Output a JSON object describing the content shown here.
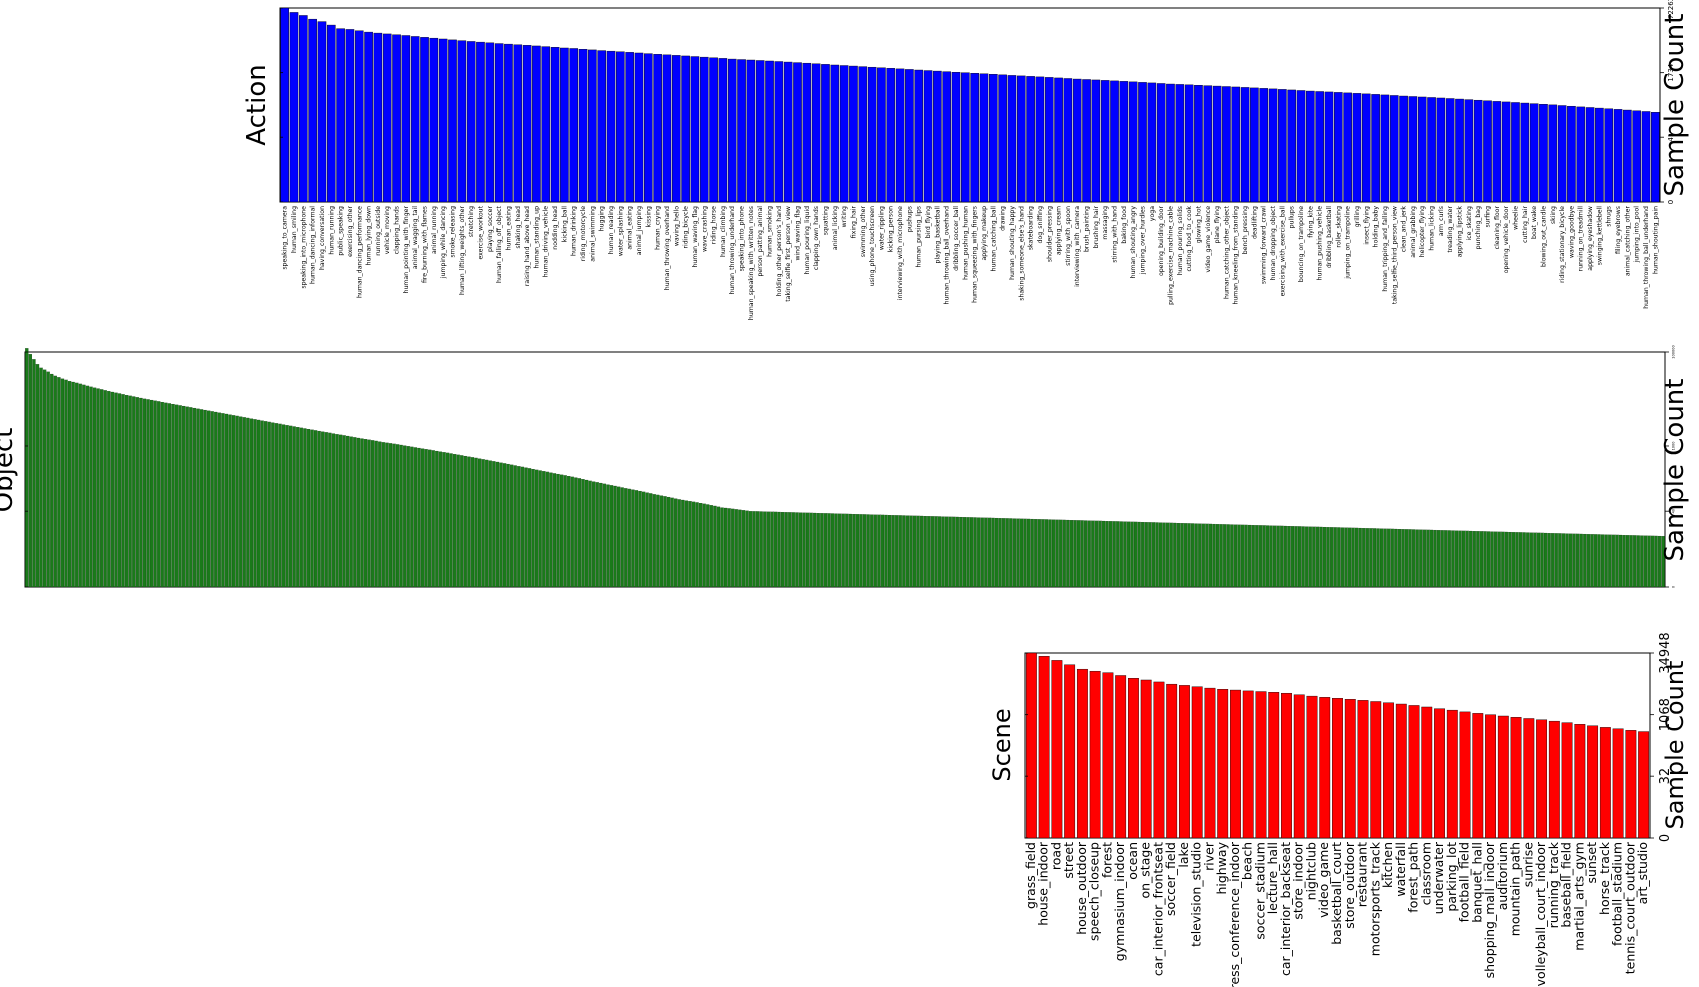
{
  "chart_data": [
    {
      "type": "bar",
      "category_title": "Action",
      "right_axis_label": "Sample Count",
      "yscale": "log",
      "yticks": [
        "0",
        "41",
        "1734",
        "72263"
      ],
      "color": "#0000ff",
      "categories": [
        "speaking_to_camera",
        "human_smiling",
        "speaking_into_microphone",
        "human_dancing_informal",
        "having_conversation",
        "human_running",
        "public_speaking",
        "exercising_other",
        "human_dancing_performance",
        "human_lying_down",
        "running_outside",
        "vehicle_moving",
        "clapping_hands",
        "human_pointing_with_finger",
        "animal_wagging_tail",
        "fire_burning_with_flames",
        "animal_running",
        "jumping_while_dancing",
        "smoke_releasing",
        "human_lifting_weights_other",
        "stretching",
        "exercise_workout",
        "playing_soccer",
        "human_falling_off_object",
        "human_eating",
        "shaking_head",
        "raising_hand_above_head",
        "human_standing_up",
        "human_driving_vehicle",
        "nodding_head",
        "kicking_ball",
        "human_drinking",
        "riding_motorcycle",
        "animal_swimming",
        "hugging",
        "human_reading",
        "water_splashing",
        "animal_eating",
        "animal_jumping",
        "kissing",
        "human_crying",
        "human_throwing_overhand",
        "waving_hello",
        "riding_bicycle",
        "human_waving_flag",
        "wave_crashing",
        "riding_horse",
        "human_climbing",
        "human_throwing_underhand",
        "speaking_into_phone",
        "human_speaking_with_written_notes",
        "person_patting_animal",
        "human_smoking",
        "holding_other_person's_hand",
        "taking_selfie_first_person_view",
        "wind_waving_flag",
        "human_pouring_liquid",
        "clapping_own_hands",
        "squatting",
        "animal_licking",
        "writing",
        "fixing_hair",
        "swimming_other",
        "using_phone_touchscreen",
        "water_rippling",
        "kicking_person",
        "interviewing_with_microphone",
        "pushups",
        "human_pursing_lips",
        "bird_flying",
        "playing_basketball",
        "human_throwing_ball_overhand",
        "dribbling_soccer_ball",
        "human_pushing_human",
        "human_squeezing_with_fingers",
        "applying_makeup",
        "human_catching_ball",
        "drawing",
        "human_shouting_happy",
        "shaking_someone_else's_hand",
        "skateboarding",
        "dog_sniffing",
        "shoulder_pressing",
        "applying_cream",
        "stirring_with_spoon",
        "interviewing_with_camera",
        "brush_painting",
        "brushing_hair",
        "massaging",
        "stirring_with_hand",
        "baking_food",
        "human_shouting_angry",
        "jumping_over_hurdles",
        "yoga",
        "opening_building_door",
        "pulling_exercise_machine_cable",
        "human_pouring_solids",
        "cutting_food_to_cook",
        "glowing_hot",
        "video_game_violence",
        "plane_flying",
        "human_catching_other_object",
        "human_kneeling_from_standing",
        "bench_pressing",
        "deadlifting",
        "swimming_forward_crawl",
        "human_dropping_object",
        "exercising_with_exercise_ball",
        "pullups",
        "bouncing_on_trampoline",
        "flying_kite",
        "human_pushing_vehicle",
        "dribbling_basketball",
        "roller_skating",
        "jumping_on_trampoline",
        "grilling",
        "insect_flying",
        "holding_baby",
        "human_tripping_and_falling",
        "taking_selfie_third_person_view",
        "clean_and_jerk",
        "animal_grabbing",
        "helicopter_flying",
        "human_licking",
        "arm_curls",
        "treading_water",
        "applying_lipstick",
        "ice_skating",
        "punching_bag",
        "surfing",
        "cleaning_floor",
        "opening_vehicle_door",
        "wheelie",
        "cutting_hair",
        "boat_wake",
        "blowing_out_candle",
        "skiing",
        "riding_stationary_bicycle",
        "waving_goodbye",
        "running_on_treadmill",
        "applying_eyeshadow",
        "swinging_kettlebell",
        "shrugs",
        "filing_eyebrows",
        "animal_catching_other",
        "jumping_into_pool",
        "human_throwing_ball_underhand",
        "human_shouting_pain"
      ],
      "values": [
        72263,
        56000,
        47000,
        38000,
        33000,
        27000,
        22000,
        21000,
        19500,
        18000,
        17000,
        16200,
        15500,
        14800,
        14000,
        13300,
        12700,
        12100,
        11500,
        11000,
        10500,
        10100,
        9700,
        9300,
        9000,
        8700,
        8400,
        8100,
        7800,
        7500,
        7200,
        7000,
        6700,
        6450,
        6200,
        6000,
        5800,
        5600,
        5400,
        5200,
        5000,
        4850,
        4700,
        4550,
        4400,
        4250,
        4100,
        3950,
        3800,
        3700,
        3600,
        3500,
        3400,
        3300,
        3200,
        3100,
        3000,
        2900,
        2800,
        2700,
        2620,
        2540,
        2460,
        2380,
        2300,
        2230,
        2160,
        2090,
        2020,
        1960,
        1900,
        1840,
        1780,
        1734,
        1680,
        1630,
        1580,
        1530,
        1480,
        1440,
        1400,
        1360,
        1320,
        1280,
        1240,
        1200,
        1170,
        1140,
        1110,
        1080,
        1050,
        1020,
        990,
        960,
        930,
        900,
        880,
        860,
        840,
        820,
        800,
        780,
        760,
        740,
        720,
        700,
        680,
        660,
        640,
        620,
        600,
        585,
        570,
        555,
        540,
        525,
        510,
        495,
        480,
        465,
        450,
        438,
        426,
        414,
        402,
        390,
        378,
        366,
        354,
        342,
        330,
        320,
        310,
        300,
        290,
        280,
        270,
        260,
        250,
        240,
        232,
        224,
        216,
        208,
        200,
        192,
        184,
        176
      ]
    },
    {
      "type": "bar",
      "category_title": "Object",
      "right_axis_label": "Sample Count",
      "yscale": "log",
      "yticks": [
        "0",
        "40",
        "1000",
        "100000"
      ],
      "color": "#1a7a1a",
      "num_bars": 460,
      "values": [
        120000,
        90000,
        70000,
        55000,
        46000,
        42000,
        38000,
        34000,
        31000,
        29000,
        27000,
        25500,
        24000,
        23000,
        22000,
        21000,
        20000,
        19000,
        18200,
        17400,
        16700,
        16000,
        15300,
        14700,
        14100,
        13600,
        13100,
        12600,
        12100,
        11700,
        11300,
        10900,
        10500,
        10100,
        9800,
        9500,
        9200,
        8900,
        8600,
        8300,
        8050,
        7800,
        7550,
        7300,
        7080,
        6860,
        6640,
        6420,
        6210,
        6000,
        5820,
        5640,
        5460,
        5290,
        5120,
        4960,
        4800,
        4650,
        4500,
        4360,
        4220,
        4080,
        3950,
        3820,
        3700,
        3580,
        3470,
        3360,
        3250,
        3150,
        3050,
        2950,
        2860,
        2770,
        2680,
        2600,
        2520,
        2440,
        2360,
        2290,
        2220,
        2150,
        2080,
        2020,
        1960,
        1900,
        1840,
        1780,
        1730,
        1680,
        1630,
        1580,
        1530,
        1480,
        1440,
        1400,
        1360,
        1320,
        1280,
        1240,
        1200,
        1170,
        1140,
        1110,
        1080,
        1050,
        1020,
        990,
        960,
        930,
        905,
        880,
        855,
        830,
        805,
        780,
        758,
        736,
        714,
        692,
        670,
        650,
        630,
        610,
        592,
        574,
        556,
        538,
        520,
        504,
        488,
        472,
        456,
        440,
        426,
        412,
        398,
        384,
        370,
        358,
        346,
        334,
        322,
        310,
        300,
        290,
        280,
        270,
        260,
        252,
        244,
        236,
        228,
        220,
        212,
        204,
        196,
        188,
        180,
        174,
        168,
        162,
        156,
        150,
        145,
        140,
        135,
        130,
        125,
        121,
        117,
        113,
        109,
        105,
        101,
        97,
        93,
        90,
        87,
        84,
        81,
        78,
        75,
        72,
        70,
        68,
        66,
        64,
        62,
        60,
        58,
        56,
        54,
        52,
        50,
        48,
        47,
        46,
        45,
        44,
        43,
        42,
        41,
        40
      ]
    },
    {
      "type": "bar",
      "category_title": "Scene",
      "right_axis_label": "Sample Count",
      "yscale": "log",
      "yticks": [
        "0",
        "32",
        "1068",
        "34948"
      ],
      "color": "#ff0000",
      "categories": [
        "grass_field",
        "house_indoor",
        "road",
        "street",
        "house_outdoor",
        "speech_closeup",
        "forest",
        "gymnasium_indoor",
        "ocean",
        "on_stage",
        "car_interior_frontseat",
        "soccer_field",
        "lake",
        "television_studio",
        "river",
        "highway",
        "press_conference_indoor",
        "beach",
        "soccer_stadium",
        "lecture_hall",
        "car_interior_backseat",
        "store_indoor",
        "nightclub",
        "video_game",
        "basketball_court",
        "store_outdoor",
        "restaurant",
        "motorsports_track",
        "kitchen",
        "waterfall",
        "forest_path",
        "classroom",
        "underwater",
        "parking_lot",
        "football_field",
        "banquet_hall",
        "shopping_mall_indoor",
        "auditorium",
        "mountain_path",
        "sunrise",
        "volleyball_court_indoor",
        "running_track",
        "baseball_field",
        "martial_arts_gym",
        "sunset",
        "horse_track",
        "football_stadium",
        "tennis_court_outdoor",
        "art_studio"
      ],
      "values": [
        34948,
        29000,
        23000,
        18000,
        14000,
        12500,
        11500,
        9800,
        8400,
        7600,
        6800,
        6000,
        5600,
        5200,
        4800,
        4500,
        4300,
        4100,
        3950,
        3800,
        3600,
        3300,
        3050,
        2850,
        2700,
        2550,
        2400,
        2250,
        2100,
        1950,
        1800,
        1650,
        1500,
        1380,
        1250,
        1150,
        1068,
        990,
        920,
        860,
        800,
        740,
        680,
        620,
        570,
        520,
        480,
        440,
        410
      ]
    }
  ]
}
